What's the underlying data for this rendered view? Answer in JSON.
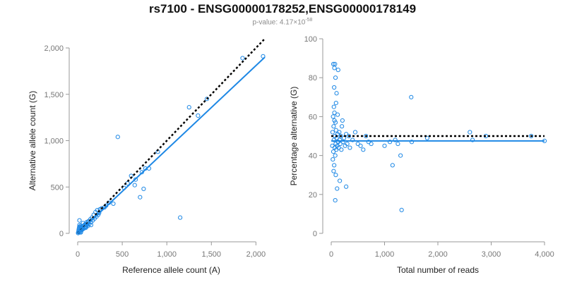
{
  "title": "rs7100 - ENSG00000178252,ENSG00000178149",
  "subtitle": {
    "prefix": "p-value: 4.17",
    "times": "×",
    "base": "10",
    "exponent": "-58"
  },
  "colors": {
    "points": "#1E88E5",
    "fit_line": "#1E88E5",
    "reference_line": "#000000",
    "axis": "#999999"
  },
  "chart_data": [
    {
      "type": "scatter",
      "title": "",
      "xlabel": "Reference allele count (A)",
      "ylabel": "Alternative allele count (G)",
      "xlim": [
        0,
        2100
      ],
      "ylim": [
        0,
        2000
      ],
      "x_ticks": [
        0,
        500,
        1000,
        1500,
        2000
      ],
      "x_tick_labels": [
        "0",
        "500",
        "1,000",
        "1,500",
        "2,000"
      ],
      "y_ticks": [
        0,
        500,
        1000,
        1500,
        2000
      ],
      "y_tick_labels": [
        "0",
        "500",
        "1,000",
        "1,500",
        "2,000"
      ],
      "reference_line": {
        "style": "dotted",
        "points": [
          [
            0,
            0
          ],
          [
            2100,
            2100
          ]
        ]
      },
      "fit_line": {
        "style": "solid",
        "points": [
          [
            0,
            0
          ],
          [
            2100,
            1900
          ]
        ]
      },
      "points": [
        [
          5,
          3
        ],
        [
          8,
          12
        ],
        [
          10,
          25
        ],
        [
          12,
          40
        ],
        [
          15,
          55
        ],
        [
          18,
          70
        ],
        [
          20,
          90
        ],
        [
          22,
          15
        ],
        [
          25,
          30
        ],
        [
          28,
          48
        ],
        [
          30,
          65
        ],
        [
          32,
          80
        ],
        [
          35,
          10
        ],
        [
          38,
          20
        ],
        [
          40,
          35
        ],
        [
          42,
          50
        ],
        [
          45,
          60
        ],
        [
          48,
          75
        ],
        [
          50,
          40
        ],
        [
          55,
          55
        ],
        [
          60,
          70
        ],
        [
          65,
          50
        ],
        [
          70,
          85
        ],
        [
          75,
          60
        ],
        [
          80,
          95
        ],
        [
          85,
          75
        ],
        [
          90,
          100
        ],
        [
          95,
          70
        ],
        [
          100,
          120
        ],
        [
          105,
          90
        ],
        [
          110,
          110
        ],
        [
          115,
          80
        ],
        [
          120,
          130
        ],
        [
          130,
          100
        ],
        [
          140,
          150
        ],
        [
          150,
          120
        ],
        [
          160,
          170
        ],
        [
          170,
          140
        ],
        [
          180,
          200
        ],
        [
          190,
          160
        ],
        [
          200,
          230
        ],
        [
          210,
          180
        ],
        [
          220,
          250
        ],
        [
          230,
          200
        ],
        [
          20,
          140
        ],
        [
          60,
          110
        ],
        [
          90,
          60
        ],
        [
          150,
          90
        ],
        [
          240,
          220
        ],
        [
          250,
          260
        ],
        [
          270,
          270
        ],
        [
          300,
          280
        ],
        [
          320,
          300
        ],
        [
          350,
          330
        ],
        [
          400,
          320
        ],
        [
          450,
          1040
        ],
        [
          520,
          490
        ],
        [
          560,
          540
        ],
        [
          600,
          620
        ],
        [
          640,
          520
        ],
        [
          650,
          580
        ],
        [
          700,
          390
        ],
        [
          720,
          660
        ],
        [
          740,
          480
        ],
        [
          760,
          700
        ],
        [
          800,
          700
        ],
        [
          900,
          880
        ],
        [
          1150,
          170
        ],
        [
          1250,
          1360
        ],
        [
          1350,
          1270
        ],
        [
          1450,
          1450
        ],
        [
          1850,
          1890
        ],
        [
          2080,
          1910
        ]
      ]
    },
    {
      "type": "scatter",
      "title": "",
      "xlabel": "Total number of reads",
      "ylabel": "Percentage alternative (G)",
      "xlim": [
        0,
        4000
      ],
      "ylim": [
        0,
        100
      ],
      "x_ticks": [
        0,
        1000,
        2000,
        3000,
        4000
      ],
      "x_tick_labels": [
        "0",
        "1,000",
        "2,000",
        "3,000",
        "4,000"
      ],
      "y_ticks": [
        0,
        20,
        40,
        60,
        80,
        100
      ],
      "y_tick_labels": [
        "0",
        "20",
        "40",
        "60",
        "80",
        "100"
      ],
      "reference_line": {
        "style": "dotted",
        "points": [
          [
            0,
            50
          ],
          [
            4000,
            50
          ]
        ]
      },
      "fit_line": {
        "style": "solid",
        "points": [
          [
            0,
            47.5
          ],
          [
            4000,
            47.5
          ]
        ]
      },
      "points": [
        [
          20,
          45
        ],
        [
          25,
          52
        ],
        [
          30,
          38
        ],
        [
          35,
          60
        ],
        [
          40,
          42
        ],
        [
          45,
          55
        ],
        [
          50,
          48
        ],
        [
          55,
          35
        ],
        [
          60,
          62
        ],
        [
          65,
          44
        ],
        [
          70,
          50
        ],
        [
          75,
          40
        ],
        [
          80,
          57
        ],
        [
          85,
          46
        ],
        [
          90,
          53
        ],
        [
          95,
          43
        ],
        [
          100,
          49
        ],
        [
          110,
          45
        ],
        [
          120,
          51
        ],
        [
          130,
          47
        ],
        [
          140,
          44
        ],
        [
          150,
          52
        ],
        [
          160,
          48
        ],
        [
          170,
          46
        ],
        [
          180,
          50
        ],
        [
          190,
          43
        ],
        [
          200,
          55
        ],
        [
          220,
          47
        ],
        [
          240,
          49
        ],
        [
          260,
          45
        ],
        [
          280,
          51
        ],
        [
          300,
          46
        ],
        [
          40,
          87
        ],
        [
          60,
          85
        ],
        [
          70,
          87
        ],
        [
          80,
          80
        ],
        [
          55,
          75
        ],
        [
          90,
          67
        ],
        [
          100,
          72
        ],
        [
          50,
          65
        ],
        [
          130,
          84
        ],
        [
          75,
          17
        ],
        [
          110,
          23
        ],
        [
          85,
          30
        ],
        [
          45,
          32
        ],
        [
          160,
          27
        ],
        [
          60,
          58
        ],
        [
          120,
          61
        ],
        [
          210,
          58
        ],
        [
          330,
          50
        ],
        [
          350,
          44
        ],
        [
          400,
          48
        ],
        [
          450,
          52
        ],
        [
          500,
          46
        ],
        [
          550,
          45
        ],
        [
          600,
          43
        ],
        [
          650,
          50
        ],
        [
          700,
          47
        ],
        [
          750,
          46
        ],
        [
          280,
          24
        ],
        [
          1000,
          45
        ],
        [
          1100,
          47
        ],
        [
          1150,
          35
        ],
        [
          1200,
          48
        ],
        [
          1250,
          46
        ],
        [
          1300,
          40
        ],
        [
          1320,
          12
        ],
        [
          1500,
          70
        ],
        [
          1510,
          47
        ],
        [
          1800,
          49
        ],
        [
          2600,
          52
        ],
        [
          2650,
          48
        ],
        [
          2900,
          50
        ],
        [
          3750,
          50
        ],
        [
          4000,
          47.5
        ]
      ]
    }
  ]
}
